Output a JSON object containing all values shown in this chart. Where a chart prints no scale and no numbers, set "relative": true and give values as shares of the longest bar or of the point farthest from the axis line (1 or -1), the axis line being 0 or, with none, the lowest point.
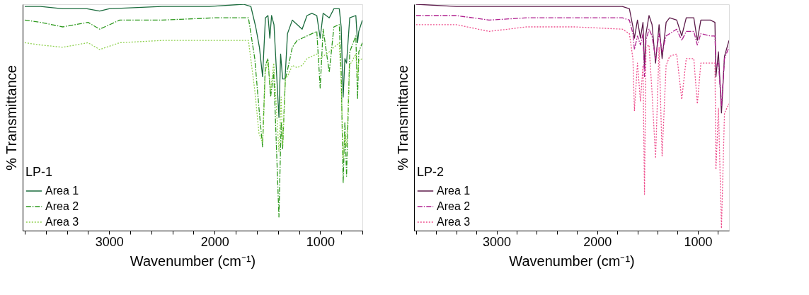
{
  "chart_data": [
    {
      "type": "line",
      "relative": true,
      "xlabel": "Wavenumber (cm⁻¹)",
      "ylabel": "% Transmittance",
      "legend_title": "LP-1",
      "legend": "bottom left",
      "tick_labels": "x",
      "grid": false,
      "marker": "none",
      "xlim": [
        3820,
        600
      ],
      "xticks": [
        {
          "value": 3800,
          "label": null
        },
        {
          "value": 3600,
          "label": null
        },
        {
          "value": 3400,
          "label": null
        },
        {
          "value": 3200,
          "label": null
        },
        3000,
        {
          "value": 2800,
          "label": null
        },
        {
          "value": 2600,
          "label": null
        },
        {
          "value": 2400,
          "label": null
        },
        {
          "value": 2200,
          "label": null
        },
        2000,
        {
          "value": 1800,
          "label": null
        },
        {
          "value": 1600,
          "label": null
        },
        {
          "value": 1400,
          "label": null
        },
        {
          "value": 1200,
          "label": null
        },
        1000,
        {
          "value": 800,
          "label": null
        },
        {
          "value": 600,
          "label": null
        }
      ],
      "series": [
        {
          "name": "Area 1",
          "color": "#1a6b3c",
          "line_style": "solid",
          "x": [
            3800,
            3650,
            3440,
            3210,
            3090,
            3000,
            2500,
            2050,
            1727,
            1657,
            1611,
            1576,
            1546,
            1519,
            1495,
            1477,
            1461,
            1438,
            1391,
            1375,
            1356,
            1333,
            1310,
            1264,
            1218,
            1171,
            1125,
            1079,
            1032,
            1000,
            972,
            914,
            870,
            819,
            801,
            782,
            766,
            750,
            720,
            662,
            646,
            634,
            600
          ],
          "values": [
            0.99,
            0.99,
            0.98,
            0.98,
            0.97,
            0.98,
            0.99,
            0.99,
            1.0,
            0.99,
            0.9,
            0.81,
            0.68,
            0.94,
            0.95,
            0.85,
            0.95,
            0.91,
            0.5,
            0.78,
            0.67,
            0.67,
            0.87,
            0.93,
            0.91,
            0.89,
            0.95,
            0.96,
            0.95,
            0.85,
            0.96,
            0.94,
            0.98,
            0.98,
            0.9,
            0.59,
            0.76,
            0.74,
            0.94,
            0.95,
            0.83,
            0.88,
            0.93
          ]
        },
        {
          "name": "Area 2",
          "color": "#2e9a1e",
          "line_style": "dashed",
          "x": [
            3800,
            3650,
            3440,
            3200,
            3090,
            2900,
            2500,
            2000,
            1750,
            1680,
            1620,
            1580,
            1546,
            1520,
            1495,
            1470,
            1440,
            1391,
            1370,
            1356,
            1330,
            1300,
            1264,
            1218,
            1171,
            1125,
            1079,
            1032,
            1000,
            972,
            914,
            870,
            819,
            801,
            782,
            766,
            750,
            720,
            662,
            646,
            634,
            600
          ],
          "values": [
            0.93,
            0.92,
            0.9,
            0.92,
            0.89,
            0.93,
            0.93,
            0.94,
            0.94,
            0.94,
            0.76,
            0.54,
            0.37,
            0.73,
            0.76,
            0.59,
            0.7,
            0.06,
            0.48,
            0.36,
            0.67,
            0.73,
            0.81,
            0.84,
            0.85,
            0.86,
            0.87,
            0.88,
            0.63,
            0.89,
            0.7,
            0.9,
            0.91,
            0.7,
            0.21,
            0.48,
            0.24,
            0.79,
            0.86,
            0.58,
            0.79,
            0.83
          ]
        },
        {
          "name": "Area 3",
          "color": "#8fd14f",
          "line_style": "dotted",
          "x": [
            3800,
            3650,
            3440,
            3200,
            3090,
            2900,
            2500,
            2000,
            1750,
            1680,
            1620,
            1580,
            1546,
            1520,
            1495,
            1470,
            1440,
            1391,
            1370,
            1356,
            1330,
            1300,
            1264,
            1218,
            1171,
            1125,
            1079,
            1032,
            1000,
            972,
            914,
            870,
            819,
            801,
            782,
            766,
            750,
            720,
            662,
            646,
            634,
            600
          ],
          "values": [
            0.83,
            0.82,
            0.81,
            0.83,
            0.8,
            0.83,
            0.84,
            0.84,
            0.84,
            0.84,
            0.62,
            0.43,
            0.39,
            0.7,
            0.75,
            0.62,
            0.74,
            0.35,
            0.59,
            0.38,
            0.67,
            0.69,
            0.73,
            0.72,
            0.73,
            0.76,
            0.77,
            0.78,
            0.76,
            0.77,
            0.79,
            0.81,
            0.83,
            0.65,
            0.32,
            0.43,
            0.37,
            0.73,
            0.78,
            0.67,
            0.75,
            0.76
          ]
        }
      ]
    },
    {
      "type": "line",
      "relative": true,
      "xlabel": "Wavenumber (cm⁻¹)",
      "ylabel": "% Transmittance",
      "legend_title": "LP-2",
      "legend": "bottom left",
      "tick_labels": "x",
      "grid": false,
      "marker": "none",
      "xlim": [
        3820,
        690
      ],
      "xticks": [
        {
          "value": 3800,
          "label": null
        },
        {
          "value": 3600,
          "label": null
        },
        {
          "value": 3400,
          "label": null
        },
        {
          "value": 3200,
          "label": null
        },
        3000,
        {
          "value": 2800,
          "label": null
        },
        {
          "value": 2600,
          "label": null
        },
        {
          "value": 2400,
          "label": null
        },
        {
          "value": 2200,
          "label": null
        },
        2000,
        {
          "value": 1800,
          "label": null
        },
        {
          "value": 1600,
          "label": null
        },
        {
          "value": 1400,
          "label": null
        },
        {
          "value": 1200,
          "label": null
        },
        1000,
        {
          "value": 800,
          "label": null
        }
      ],
      "x": [
        3800,
        3400,
        3075,
        2700,
        2225,
        1750,
        1680,
        1645,
        1630,
        1600,
        1570,
        1545,
        1530,
        1515,
        1485,
        1455,
        1420,
        1385,
        1355,
        1315,
        1280,
        1210,
        1160,
        1115,
        1040,
        1005,
        970,
        875,
        830,
        820,
        795,
        765,
        735,
        690
      ],
      "series": [
        {
          "name": "Area 1",
          "color": "#5c1a4a",
          "line_style": "solid",
          "values": [
            1.0,
            0.99,
            0.99,
            0.99,
            0.99,
            0.99,
            0.98,
            0.9,
            0.85,
            0.93,
            0.85,
            0.92,
            0.72,
            0.87,
            0.95,
            0.91,
            0.74,
            0.91,
            0.76,
            0.92,
            0.94,
            0.93,
            0.86,
            0.94,
            0.94,
            0.84,
            0.93,
            0.93,
            0.92,
            0.68,
            0.79,
            0.52,
            0.77,
            0.84
          ]
        },
        {
          "name": "Area 2",
          "color": "#b0208f",
          "line_style": "dashed",
          "values": [
            0.95,
            0.95,
            0.93,
            0.94,
            0.94,
            0.94,
            0.93,
            0.87,
            0.8,
            0.86,
            0.82,
            0.87,
            0.68,
            0.84,
            0.89,
            0.86,
            0.76,
            0.87,
            0.79,
            0.86,
            0.87,
            0.89,
            0.84,
            0.88,
            0.88,
            0.82,
            0.87,
            0.86,
            0.86,
            0.73,
            0.74,
            0.55,
            0.76,
            0.81
          ]
        },
        {
          "name": "Area 3",
          "color": "#ee4d8c",
          "line_style": "dotted",
          "values": [
            0.91,
            0.91,
            0.88,
            0.9,
            0.9,
            0.89,
            0.87,
            0.76,
            0.53,
            0.74,
            0.57,
            0.73,
            0.16,
            0.81,
            0.82,
            0.61,
            0.32,
            0.81,
            0.33,
            0.73,
            0.77,
            0.78,
            0.58,
            0.76,
            0.76,
            0.56,
            0.74,
            0.74,
            0.74,
            0.27,
            0.54,
            0.01,
            0.52,
            0.56
          ]
        }
      ]
    }
  ]
}
